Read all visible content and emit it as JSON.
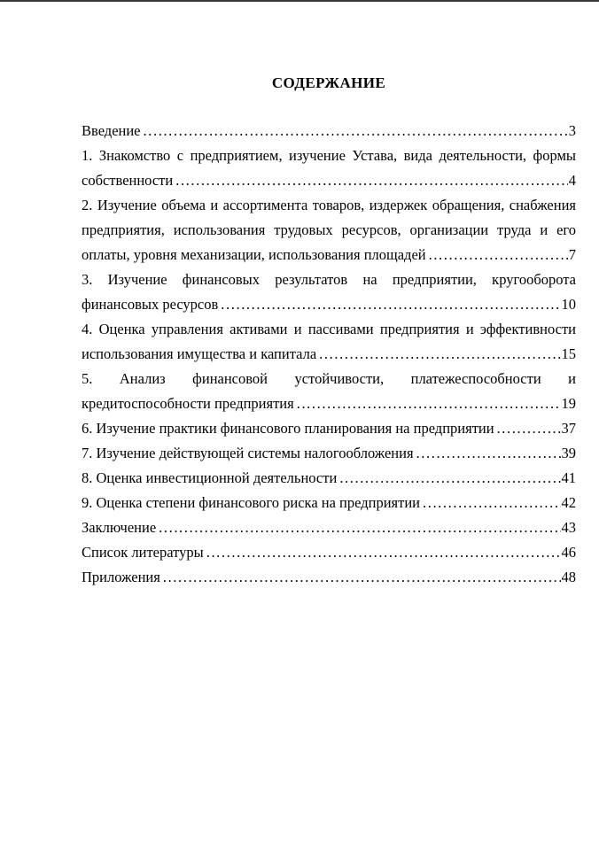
{
  "page": {
    "title": "СОДЕРЖАНИЕ",
    "background_color": "#ffffff",
    "text_color": "#000000",
    "top_edge_color": "#3a3a3a"
  },
  "toc": {
    "entries": [
      {
        "lines": [],
        "last_line": "Введение",
        "page": "3"
      },
      {
        "lines": [
          "1. Знакомство с предприятием, изучение Устава, вида деятельности, формы"
        ],
        "last_line": "собственности",
        "page": "4"
      },
      {
        "lines": [
          "2. Изучение объема и ассортимента товаров, издержек обращения, снабжения",
          "предприятия, использования трудовых ресурсов, организации труда и его"
        ],
        "last_line": "оплаты, уровня механизации, использования площадей",
        "page": "7"
      },
      {
        "lines": [
          "3. Изучение финансовых результатов на предприятии, кругооборота"
        ],
        "last_line": "финансовых ресурсов",
        "page": "10"
      },
      {
        "lines": [
          "4. Оценка управления активами и пассивами предприятия и эффективности"
        ],
        "last_line": "использования имущества и капитала",
        "page": "15"
      },
      {
        "lines": [
          "5. Анализ финансовой устойчивости, платежеспособности и"
        ],
        "last_line": "кредитоспособности предприятия",
        "page": "19"
      },
      {
        "lines": [],
        "last_line": "6. Изучение практики финансового планирования на предприятии",
        "page": "37"
      },
      {
        "lines": [],
        "last_line": "7. Изучение действующей системы налогообложения",
        "page": "39"
      },
      {
        "lines": [],
        "last_line": "8. Оценка инвестиционной деятельности",
        "page": "41"
      },
      {
        "lines": [],
        "last_line": "9. Оценка степени финансового риска на предприятии",
        "page": "42"
      },
      {
        "lines": [],
        "last_line": "Заключение",
        "page": "43"
      },
      {
        "lines": [],
        "last_line": "Список литературы",
        "page": "46"
      },
      {
        "lines": [],
        "last_line": "Приложения",
        "page": "48"
      }
    ]
  }
}
